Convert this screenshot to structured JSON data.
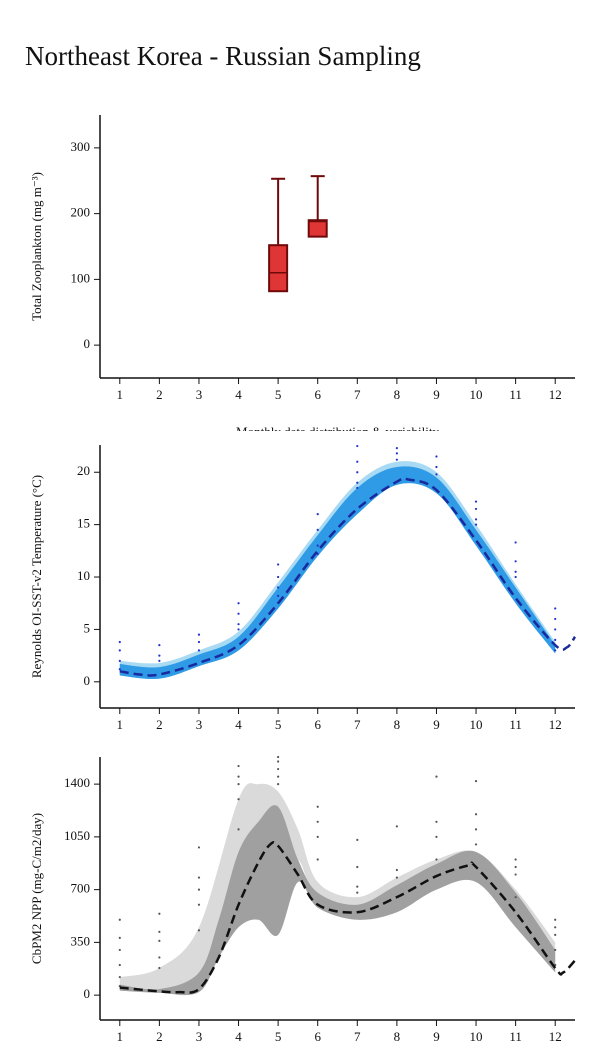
{
  "title": "Northeast Korea - Russian Sampling",
  "chart_data": [
    {
      "type": "box",
      "ylabel": "Total Zooplankton (mg m⁻³)",
      "xlabel": "Monthly data distribution & variability",
      "xlim": [
        0.5,
        12.5
      ],
      "xticks": [
        1,
        2,
        3,
        4,
        5,
        6,
        7,
        8,
        9,
        10,
        11,
        12
      ],
      "ylim": [
        -50,
        350
      ],
      "yticks": [
        0,
        100,
        200,
        300
      ],
      "color": "#e03535",
      "edge_color": "#6e0a0a",
      "boxes": [
        {
          "x": 5,
          "min": 82,
          "q1": 82,
          "median": 110,
          "q3": 152,
          "max": 253
        },
        {
          "x": 6,
          "min": 165,
          "q1": 165,
          "median": 188,
          "q3": 190,
          "max": 257
        }
      ]
    },
    {
      "type": "band_line",
      "ylabel": "Reynolds OI-SST-v2 Temperature (°C)",
      "xlim": [
        0.5,
        12.5
      ],
      "xticks": [
        1,
        2,
        3,
        4,
        5,
        6,
        7,
        8,
        9,
        10,
        11,
        12
      ],
      "ylim": [
        -2.5,
        22.6
      ],
      "yticks": [
        0,
        5,
        10,
        15,
        20
      ],
      "bands": [
        {
          "color": "#a8daf3",
          "x": [
            1,
            2,
            3,
            4,
            5,
            6,
            7,
            8,
            9,
            10,
            11,
            12
          ],
          "lower": [
            0.6,
            0.3,
            1.5,
            3,
            7,
            12,
            16,
            18.8,
            18,
            13,
            7.5,
            2.7
          ],
          "upper": [
            2,
            1.8,
            3,
            4.8,
            9.5,
            14.5,
            19,
            21,
            20,
            15,
            9.3,
            3.8
          ]
        },
        {
          "color": "#2f9ae6",
          "x": [
            1,
            2,
            3,
            4,
            5,
            6,
            7,
            8,
            9,
            10,
            11,
            12
          ],
          "lower": [
            0.6,
            0.3,
            1.5,
            3,
            7,
            12,
            16,
            18.8,
            18,
            13,
            7.5,
            2.7
          ],
          "upper": [
            1.7,
            1.4,
            2.6,
            4.3,
            9,
            14,
            18.5,
            20.5,
            19.5,
            14.5,
            9,
            3.5
          ]
        }
      ],
      "line": {
        "color": "#1a2a9e",
        "x": [
          1,
          1.5,
          2,
          3,
          4,
          5,
          6,
          7,
          8,
          8.3,
          9,
          10,
          11,
          12,
          12.3,
          12.5
        ],
        "values": [
          1,
          0.7,
          0.7,
          1.8,
          3.5,
          7.5,
          12.5,
          16.5,
          19.1,
          19.3,
          18.3,
          13.5,
          8,
          3.5,
          3.3,
          4.3
        ]
      },
      "points": {
        "color": "#2233cc",
        "x": [
          1,
          1,
          1,
          1,
          2,
          2,
          2,
          3,
          3,
          3,
          4,
          4,
          4,
          4,
          5,
          5,
          5,
          5,
          6,
          6,
          6,
          6,
          7,
          7,
          7,
          7,
          7,
          8,
          8,
          8,
          9,
          9,
          9,
          10,
          10,
          10,
          10,
          11,
          11,
          11,
          11,
          12,
          12,
          12,
          12,
          12
        ],
        "values": [
          3.8,
          3,
          2,
          1.2,
          3.5,
          2.5,
          2,
          4.5,
          3.8,
          3,
          7.5,
          6.5,
          5.5,
          5,
          11.2,
          10,
          9,
          8.2,
          16,
          14.5,
          13,
          12.2,
          22.5,
          21,
          20,
          19,
          18.5,
          22.3,
          21.8,
          21.2,
          21.5,
          20.5,
          19.8,
          17.2,
          16.5,
          15.5,
          15,
          13.3,
          11.5,
          10.5,
          10,
          7,
          6,
          5,
          4,
          3
        ]
      }
    },
    {
      "type": "band_line",
      "ylabel": "CbPM2 NPP (mg-C/m2/day)",
      "xlim": [
        0.5,
        12.5
      ],
      "xticks": [
        1,
        2,
        3,
        4,
        5,
        6,
        7,
        8,
        9,
        10,
        11,
        12
      ],
      "ylim": [
        -165,
        1580
      ],
      "yticks": [
        0,
        350,
        700,
        1050,
        1400
      ],
      "bands": [
        {
          "color": "#dadada",
          "x": [
            1,
            2,
            3,
            4,
            4.5,
            5,
            5.5,
            6,
            7,
            8,
            9,
            10,
            11,
            12
          ],
          "lower": [
            30,
            20,
            40,
            500,
            700,
            800,
            900,
            620,
            550,
            580,
            800,
            850,
            600,
            200
          ],
          "upper": [
            120,
            180,
            450,
            1300,
            1400,
            1350,
            1100,
            750,
            650,
            780,
            900,
            950,
            700,
            350
          ]
        },
        {
          "color": "#a0a0a0",
          "x": [
            1,
            2,
            3,
            3.5,
            4,
            4.5,
            5,
            5.5,
            6,
            7,
            8,
            9,
            10,
            11,
            12
          ],
          "lower": [
            30,
            15,
            20,
            250,
            450,
            500,
            400,
            750,
            580,
            500,
            550,
            700,
            750,
            450,
            150
          ],
          "upper": [
            70,
            40,
            150,
            500,
            950,
            1150,
            1250,
            900,
            680,
            600,
            730,
            870,
            950,
            680,
            300
          ]
        }
      ],
      "line": {
        "color": "#111111",
        "x": [
          1,
          2,
          2.5,
          3,
          3.5,
          4,
          4.5,
          4.8,
          5,
          5.5,
          6,
          7,
          8,
          9,
          9.8,
          10,
          11,
          12,
          12.2,
          12.5
        ],
        "values": [
          50,
          25,
          20,
          40,
          250,
          600,
          880,
          1000,
          990,
          800,
          600,
          550,
          650,
          790,
          860,
          850,
          550,
          180,
          150,
          230
        ]
      },
      "points": {
        "color": "#555555",
        "x": [
          1,
          1,
          1,
          1,
          1,
          1,
          2,
          2,
          2,
          2,
          2,
          3,
          3,
          3,
          3,
          3,
          4,
          4,
          4,
          4,
          4,
          5,
          5,
          5,
          5,
          5,
          6,
          6,
          6,
          6,
          7,
          7,
          7,
          7,
          8,
          8,
          8,
          9,
          9,
          9,
          9,
          10,
          10,
          10,
          10,
          11,
          11,
          11,
          11,
          12,
          12,
          12,
          12,
          12
        ],
        "values": [
          500,
          380,
          300,
          200,
          120,
          60,
          540,
          420,
          360,
          250,
          180,
          980,
          780,
          700,
          600,
          430,
          1520,
          1450,
          1400,
          1300,
          1100,
          1580,
          1550,
          1500,
          1450,
          1400,
          1250,
          1150,
          1050,
          900,
          1030,
          850,
          720,
          680,
          1120,
          830,
          780,
          1450,
          1150,
          1050,
          900,
          1420,
          1200,
          1100,
          1000,
          900,
          850,
          800,
          650,
          500,
          450,
          400,
          300,
          200
        ]
      }
    }
  ]
}
